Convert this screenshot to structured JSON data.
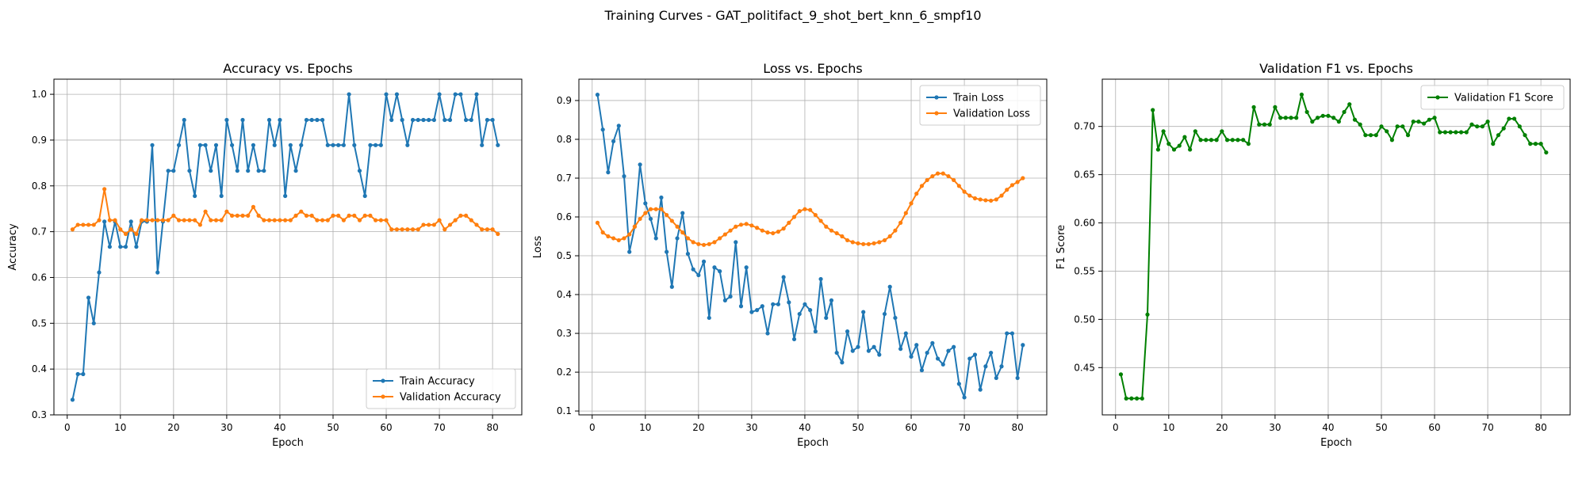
{
  "figure": {
    "suptitle": "Training Curves - GAT_politifact_9_shot_bert_knn_6_smpf10"
  },
  "colors": {
    "train": "#1f77b4",
    "validation": "#ff7f0e",
    "f1": "#008000",
    "grid": "#b0b0b0"
  },
  "chart_data": [
    {
      "type": "line",
      "title": "Accuracy vs. Epochs",
      "xlabel": "Epoch",
      "ylabel": "Accuracy",
      "xlim": [
        -2.5,
        85.5
      ],
      "ylim": [
        0.3,
        1.033
      ],
      "xticks": [
        0,
        10,
        20,
        30,
        40,
        50,
        60,
        70,
        80
      ],
      "yticks": [
        0.3,
        0.4,
        0.5,
        0.6,
        0.7,
        0.8,
        0.9,
        1.0
      ],
      "ytick_labels": [
        "0.3",
        "0.4",
        "0.5",
        "0.6",
        "0.7",
        "0.8",
        "0.9",
        "1.0"
      ],
      "grid": true,
      "legend": "lower-right",
      "series": [
        {
          "name": "Train Accuracy",
          "color": "#1f77b4",
          "values": [
            0.333,
            0.389,
            0.389,
            0.556,
            0.5,
            0.611,
            0.722,
            0.667,
            0.722,
            0.667,
            0.667,
            0.722,
            0.667,
            0.722,
            0.722,
            0.889,
            0.611,
            0.722,
            0.833,
            0.833,
            0.889,
            0.944,
            0.833,
            0.778,
            0.889,
            0.889,
            0.833,
            0.889,
            0.778,
            0.944,
            0.889,
            0.833,
            0.944,
            0.833,
            0.889,
            0.833,
            0.833,
            0.944,
            0.889,
            0.944,
            0.778,
            0.889,
            0.833,
            0.889,
            0.944,
            0.944,
            0.944,
            0.944,
            0.889,
            0.889,
            0.889,
            0.889,
            1.0,
            0.889,
            0.833,
            0.778,
            0.889,
            0.889,
            0.889,
            1.0,
            0.944,
            1.0,
            0.944,
            0.889,
            0.944,
            0.944,
            0.944,
            0.944,
            0.944,
            1.0,
            0.944,
            0.944,
            1.0,
            1.0,
            0.944,
            0.944,
            1.0,
            0.889,
            0.944,
            0.944,
            0.889
          ]
        },
        {
          "name": "Validation Accuracy",
          "color": "#ff7f0e",
          "values": [
            0.705,
            0.715,
            0.715,
            0.715,
            0.715,
            0.725,
            0.793,
            0.725,
            0.725,
            0.705,
            0.695,
            0.705,
            0.695,
            0.725,
            0.725,
            0.725,
            0.725,
            0.725,
            0.725,
            0.735,
            0.725,
            0.725,
            0.725,
            0.725,
            0.715,
            0.744,
            0.725,
            0.725,
            0.725,
            0.744,
            0.735,
            0.735,
            0.735,
            0.735,
            0.754,
            0.735,
            0.725,
            0.725,
            0.725,
            0.725,
            0.725,
            0.725,
            0.735,
            0.744,
            0.735,
            0.735,
            0.725,
            0.725,
            0.725,
            0.735,
            0.735,
            0.725,
            0.735,
            0.735,
            0.725,
            0.735,
            0.735,
            0.725,
            0.725,
            0.725,
            0.705,
            0.705,
            0.705,
            0.705,
            0.705,
            0.705,
            0.715,
            0.715,
            0.715,
            0.725,
            0.705,
            0.715,
            0.725,
            0.735,
            0.735,
            0.725,
            0.715,
            0.705,
            0.705,
            0.705,
            0.695
          ]
        }
      ]
    },
    {
      "type": "line",
      "title": "Loss vs. Epochs",
      "xlabel": "Epoch",
      "ylabel": "Loss",
      "xlim": [
        -2.5,
        85.5
      ],
      "ylim": [
        0.09,
        0.955
      ],
      "xticks": [
        0,
        10,
        20,
        30,
        40,
        50,
        60,
        70,
        80
      ],
      "yticks": [
        0.1,
        0.2,
        0.3,
        0.4,
        0.5,
        0.6,
        0.7,
        0.8,
        0.9
      ],
      "ytick_labels": [
        "0.1",
        "0.2",
        "0.3",
        "0.4",
        "0.5",
        "0.6",
        "0.7",
        "0.8",
        "0.9"
      ],
      "grid": true,
      "legend": "upper-right",
      "series": [
        {
          "name": "Train Loss",
          "color": "#1f77b4",
          "values": [
            0.915,
            0.825,
            0.715,
            0.795,
            0.835,
            0.705,
            0.51,
            0.575,
            0.735,
            0.635,
            0.595,
            0.545,
            0.65,
            0.51,
            0.42,
            0.545,
            0.61,
            0.505,
            0.465,
            0.45,
            0.485,
            0.34,
            0.47,
            0.46,
            0.385,
            0.395,
            0.535,
            0.37,
            0.47,
            0.355,
            0.36,
            0.37,
            0.3,
            0.375,
            0.375,
            0.445,
            0.38,
            0.285,
            0.35,
            0.375,
            0.36,
            0.305,
            0.44,
            0.34,
            0.385,
            0.25,
            0.225,
            0.305,
            0.255,
            0.265,
            0.355,
            0.255,
            0.265,
            0.245,
            0.35,
            0.42,
            0.34,
            0.26,
            0.3,
            0.24,
            0.27,
            0.205,
            0.25,
            0.275,
            0.235,
            0.22,
            0.255,
            0.265,
            0.17,
            0.135,
            0.235,
            0.245,
            0.155,
            0.215,
            0.25,
            0.185,
            0.215,
            0.3,
            0.3,
            0.185,
            0.27
          ]
        },
        {
          "name": "Validation Loss",
          "color": "#ff7f0e",
          "values": [
            0.585,
            0.56,
            0.55,
            0.545,
            0.54,
            0.545,
            0.555,
            0.575,
            0.595,
            0.61,
            0.62,
            0.62,
            0.62,
            0.605,
            0.59,
            0.575,
            0.56,
            0.545,
            0.535,
            0.53,
            0.528,
            0.53,
            0.535,
            0.545,
            0.555,
            0.565,
            0.575,
            0.58,
            0.582,
            0.578,
            0.572,
            0.565,
            0.56,
            0.558,
            0.562,
            0.57,
            0.585,
            0.6,
            0.615,
            0.62,
            0.618,
            0.605,
            0.59,
            0.575,
            0.565,
            0.558,
            0.55,
            0.54,
            0.535,
            0.532,
            0.53,
            0.53,
            0.532,
            0.535,
            0.54,
            0.55,
            0.565,
            0.585,
            0.61,
            0.635,
            0.66,
            0.68,
            0.695,
            0.705,
            0.712,
            0.712,
            0.705,
            0.695,
            0.68,
            0.665,
            0.655,
            0.648,
            0.645,
            0.643,
            0.642,
            0.645,
            0.655,
            0.67,
            0.682,
            0.69,
            0.7
          ]
        }
      ]
    },
    {
      "type": "line",
      "title": "Validation F1 vs. Epochs",
      "xlabel": "Epoch",
      "ylabel": "F1 Score",
      "xlim": [
        -2.5,
        85.5
      ],
      "ylim": [
        0.401,
        0.749
      ],
      "xticks": [
        0,
        10,
        20,
        30,
        40,
        50,
        60,
        70,
        80
      ],
      "yticks": [
        0.45,
        0.5,
        0.55,
        0.6,
        0.65,
        0.7
      ],
      "ytick_labels": [
        "0.45",
        "0.50",
        "0.55",
        "0.60",
        "0.65",
        "0.70"
      ],
      "grid": true,
      "legend": "upper-right",
      "series": [
        {
          "name": "Validation F1 Score",
          "color": "#008000",
          "values": [
            0.443,
            0.418,
            0.418,
            0.418,
            0.418,
            0.505,
            0.717,
            0.676,
            0.695,
            0.682,
            0.676,
            0.68,
            0.689,
            0.676,
            0.695,
            0.686,
            0.686,
            0.686,
            0.686,
            0.695,
            0.686,
            0.686,
            0.686,
            0.686,
            0.682,
            0.72,
            0.702,
            0.702,
            0.702,
            0.72,
            0.709,
            0.709,
            0.709,
            0.709,
            0.733,
            0.715,
            0.705,
            0.709,
            0.711,
            0.711,
            0.709,
            0.705,
            0.715,
            0.723,
            0.707,
            0.702,
            0.691,
            0.691,
            0.691,
            0.7,
            0.695,
            0.686,
            0.7,
            0.7,
            0.691,
            0.705,
            0.705,
            0.703,
            0.707,
            0.709,
            0.694,
            0.694,
            0.694,
            0.694,
            0.694,
            0.694,
            0.702,
            0.7,
            0.7,
            0.705,
            0.682,
            0.691,
            0.698,
            0.708,
            0.708,
            0.7,
            0.691,
            0.682,
            0.682,
            0.682,
            0.673
          ]
        }
      ]
    }
  ]
}
